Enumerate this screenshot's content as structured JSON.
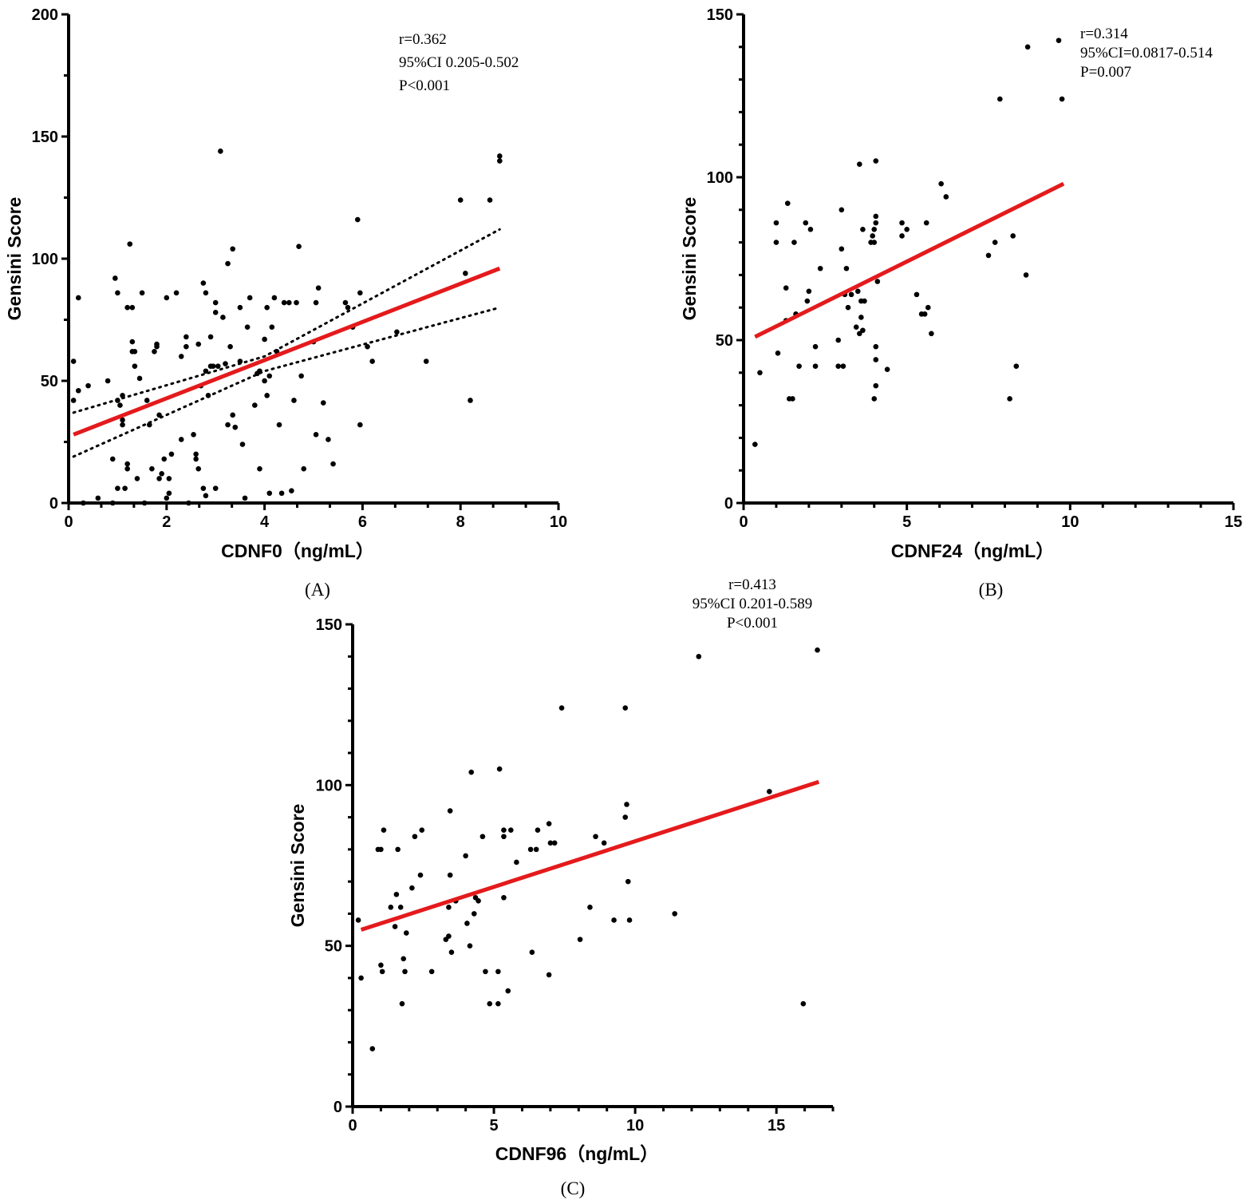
{
  "chart_data": [
    {
      "id": "A",
      "type": "scatter",
      "panel_label": "(A)",
      "xlabel": "CDNF0（ng/mL）",
      "ylabel": "Gensini Score",
      "xlim": [
        0,
        10
      ],
      "ylim": [
        0,
        200
      ],
      "xticks": [
        0,
        2,
        4,
        6,
        8,
        10
      ],
      "yticks": [
        0,
        50,
        100,
        150,
        200
      ],
      "x_minor": 2,
      "y_minor": 1,
      "stats": [
        "r=0.362",
        "95%CI 0.205-0.502",
        "P<0.001"
      ],
      "stats_align": "left",
      "fit_line": {
        "x": [
          0.1,
          8.8
        ],
        "y": [
          28,
          96
        ]
      },
      "ci_upper": {
        "x": [
          0.1,
          4.0,
          8.8
        ],
        "y": [
          37,
          60,
          112
        ]
      },
      "ci_lower": {
        "x": [
          0.1,
          4.0,
          8.8
        ],
        "y": [
          19,
          54,
          80
        ]
      },
      "points": [
        [
          0.1,
          58
        ],
        [
          0.1,
          42
        ],
        [
          0.2,
          84
        ],
        [
          0.2,
          46
        ],
        [
          0.3,
          0
        ],
        [
          0.4,
          48
        ],
        [
          0.6,
          2
        ],
        [
          0.8,
          50
        ],
        [
          0.9,
          0
        ],
        [
          0.9,
          18
        ],
        [
          0.95,
          92
        ],
        [
          1.0,
          86
        ],
        [
          1.0,
          6
        ],
        [
          1.0,
          42
        ],
        [
          1.05,
          40
        ],
        [
          1.1,
          32
        ],
        [
          1.1,
          34
        ],
        [
          1.1,
          44
        ],
        [
          1.15,
          6
        ],
        [
          1.2,
          14
        ],
        [
          1.2,
          16
        ],
        [
          1.2,
          80
        ],
        [
          1.25,
          106
        ],
        [
          1.3,
          80
        ],
        [
          1.3,
          62
        ],
        [
          1.3,
          66
        ],
        [
          1.35,
          56
        ],
        [
          1.35,
          62
        ],
        [
          1.4,
          10
        ],
        [
          1.45,
          51
        ],
        [
          1.5,
          86
        ],
        [
          1.55,
          0
        ],
        [
          1.6,
          42
        ],
        [
          1.65,
          32
        ],
        [
          1.7,
          14
        ],
        [
          1.75,
          62
        ],
        [
          1.8,
          64
        ],
        [
          1.8,
          65
        ],
        [
          1.85,
          10
        ],
        [
          1.85,
          36
        ],
        [
          1.9,
          12
        ],
        [
          1.95,
          18
        ],
        [
          2.0,
          84
        ],
        [
          2.0,
          2
        ],
        [
          2.05,
          10
        ],
        [
          2.05,
          4
        ],
        [
          2.1,
          20
        ],
        [
          2.2,
          86
        ],
        [
          2.3,
          60
        ],
        [
          2.3,
          26
        ],
        [
          2.4,
          64
        ],
        [
          2.4,
          68
        ],
        [
          2.45,
          0
        ],
        [
          2.55,
          28
        ],
        [
          2.6,
          20
        ],
        [
          2.6,
          18
        ],
        [
          2.65,
          65
        ],
        [
          2.65,
          14
        ],
        [
          2.7,
          48
        ],
        [
          2.75,
          90
        ],
        [
          2.75,
          6
        ],
        [
          2.8,
          86
        ],
        [
          2.8,
          54
        ],
        [
          2.8,
          3
        ],
        [
          2.85,
          44
        ],
        [
          2.9,
          56
        ],
        [
          2.9,
          68
        ],
        [
          2.95,
          56
        ],
        [
          3.0,
          82
        ],
        [
          3.0,
          78
        ],
        [
          3.0,
          6
        ],
        [
          3.05,
          56
        ],
        [
          3.1,
          144
        ],
        [
          3.15,
          76
        ],
        [
          3.2,
          57
        ],
        [
          3.25,
          98
        ],
        [
          3.25,
          32
        ],
        [
          3.3,
          64
        ],
        [
          3.35,
          104
        ],
        [
          3.35,
          36
        ],
        [
          3.4,
          31
        ],
        [
          3.5,
          80
        ],
        [
          3.5,
          58
        ],
        [
          3.55,
          24
        ],
        [
          3.6,
          2
        ],
        [
          3.65,
          72
        ],
        [
          3.7,
          84
        ],
        [
          3.8,
          40
        ],
        [
          3.85,
          53
        ],
        [
          3.9,
          14
        ],
        [
          3.9,
          54
        ],
        [
          4.0,
          67
        ],
        [
          4.0,
          50
        ],
        [
          4.05,
          80
        ],
        [
          4.05,
          44
        ],
        [
          4.1,
          52
        ],
        [
          4.1,
          4
        ],
        [
          4.15,
          72
        ],
        [
          4.2,
          84
        ],
        [
          4.25,
          62
        ],
        [
          4.3,
          32
        ],
        [
          4.35,
          4
        ],
        [
          4.4,
          82
        ],
        [
          4.5,
          82
        ],
        [
          4.55,
          5
        ],
        [
          4.6,
          42
        ],
        [
          4.65,
          82
        ],
        [
          4.7,
          105
        ],
        [
          4.75,
          52
        ],
        [
          4.8,
          14
        ],
        [
          5.0,
          66
        ],
        [
          5.05,
          28
        ],
        [
          5.05,
          82
        ],
        [
          5.1,
          88
        ],
        [
          5.2,
          41
        ],
        [
          5.3,
          26
        ],
        [
          5.4,
          16
        ],
        [
          5.65,
          82
        ],
        [
          5.7,
          80
        ],
        [
          5.8,
          72
        ],
        [
          5.9,
          116
        ],
        [
          5.95,
          86
        ],
        [
          5.95,
          32
        ],
        [
          6.1,
          64
        ],
        [
          6.2,
          58
        ],
        [
          6.7,
          70
        ],
        [
          7.3,
          58
        ],
        [
          8.0,
          124
        ],
        [
          8.1,
          94
        ],
        [
          8.2,
          42
        ],
        [
          8.6,
          124
        ],
        [
          8.8,
          140
        ],
        [
          8.8,
          142
        ]
      ]
    },
    {
      "id": "B",
      "type": "scatter",
      "panel_label": "(B)",
      "xlabel": "CDNF24（ng/mL）",
      "ylabel": "Gensini Score",
      "xlim": [
        0,
        15
      ],
      "ylim": [
        0,
        150
      ],
      "xticks": [
        0,
        5,
        10,
        15
      ],
      "yticks": [
        0,
        50,
        100,
        150
      ],
      "x_minor": 4,
      "y_minor": 4,
      "stats": [
        "r=0.314",
        "95%CI=0.0817-0.514",
        "P=0.007"
      ],
      "stats_align": "left",
      "fit_line": {
        "x": [
          0.35,
          9.8
        ],
        "y": [
          51,
          98
        ]
      },
      "points": [
        [
          0.35,
          18
        ],
        [
          0.5,
          40
        ],
        [
          1.0,
          80
        ],
        [
          1.0,
          86
        ],
        [
          1.05,
          46
        ],
        [
          1.3,
          66
        ],
        [
          1.3,
          56
        ],
        [
          1.35,
          92
        ],
        [
          1.4,
          32
        ],
        [
          1.5,
          32
        ],
        [
          1.55,
          80
        ],
        [
          1.6,
          58
        ],
        [
          1.7,
          42
        ],
        [
          1.9,
          86
        ],
        [
          1.95,
          62
        ],
        [
          2.0,
          65
        ],
        [
          2.05,
          84
        ],
        [
          2.2,
          48
        ],
        [
          2.2,
          42
        ],
        [
          2.35,
          72
        ],
        [
          2.9,
          42
        ],
        [
          2.9,
          50
        ],
        [
          3.0,
          90
        ],
        [
          3.0,
          78
        ],
        [
          3.05,
          42
        ],
        [
          3.1,
          64
        ],
        [
          3.15,
          72
        ],
        [
          3.2,
          60
        ],
        [
          3.3,
          64
        ],
        [
          3.45,
          54
        ],
        [
          3.5,
          65
        ],
        [
          3.55,
          104
        ],
        [
          3.55,
          52
        ],
        [
          3.6,
          57
        ],
        [
          3.6,
          62
        ],
        [
          3.65,
          84
        ],
        [
          3.65,
          53
        ],
        [
          3.7,
          62
        ],
        [
          3.9,
          80
        ],
        [
          3.95,
          82
        ],
        [
          4.0,
          84
        ],
        [
          4.0,
          80
        ],
        [
          4.0,
          32
        ],
        [
          4.05,
          86
        ],
        [
          4.05,
          36
        ],
        [
          4.05,
          105
        ],
        [
          4.05,
          88
        ],
        [
          4.05,
          48
        ],
        [
          4.05,
          44
        ],
        [
          4.1,
          68
        ],
        [
          4.4,
          41
        ],
        [
          4.85,
          86
        ],
        [
          4.85,
          82
        ],
        [
          5.0,
          84
        ],
        [
          5.3,
          64
        ],
        [
          5.45,
          58
        ],
        [
          5.55,
          58
        ],
        [
          5.6,
          86
        ],
        [
          5.65,
          60
        ],
        [
          5.75,
          52
        ],
        [
          6.05,
          98
        ],
        [
          6.2,
          94
        ],
        [
          7.5,
          76
        ],
        [
          7.7,
          80
        ],
        [
          7.85,
          124
        ],
        [
          8.15,
          32
        ],
        [
          8.25,
          82
        ],
        [
          8.35,
          42
        ],
        [
          8.65,
          70
        ],
        [
          8.7,
          140
        ],
        [
          9.65,
          142
        ],
        [
          9.75,
          124
        ]
      ]
    },
    {
      "id": "C",
      "type": "scatter",
      "panel_label": "(C)",
      "xlabel": "CDNF96（ng/mL）",
      "ylabel": "Gensini Score",
      "xlim": [
        0,
        17
      ],
      "ylim": [
        0,
        150
      ],
      "xticks": [
        0,
        5,
        10,
        15
      ],
      "yticks": [
        0,
        50,
        100,
        150
      ],
      "x_minor": 4,
      "y_minor": 4,
      "stats": [
        "r=0.413",
        "95%CI 0.201-0.589",
        "P<0.001"
      ],
      "stats_align": "center",
      "fit_line": {
        "x": [
          0.3,
          16.5
        ],
        "y": [
          55,
          101
        ]
      },
      "points": [
        [
          0.2,
          58
        ],
        [
          0.3,
          40
        ],
        [
          0.7,
          18
        ],
        [
          0.9,
          80
        ],
        [
          1.0,
          80
        ],
        [
          1.0,
          44
        ],
        [
          1.05,
          42
        ],
        [
          1.1,
          86
        ],
        [
          1.35,
          62
        ],
        [
          1.5,
          56
        ],
        [
          1.55,
          66
        ],
        [
          1.6,
          80
        ],
        [
          1.7,
          62
        ],
        [
          1.75,
          32
        ],
        [
          1.8,
          46
        ],
        [
          1.85,
          42
        ],
        [
          1.9,
          54
        ],
        [
          2.1,
          68
        ],
        [
          2.2,
          84
        ],
        [
          2.4,
          72
        ],
        [
          2.45,
          86
        ],
        [
          2.8,
          42
        ],
        [
          3.3,
          52
        ],
        [
          3.4,
          53
        ],
        [
          3.4,
          62
        ],
        [
          3.45,
          72
        ],
        [
          3.45,
          92
        ],
        [
          3.5,
          48
        ],
        [
          3.65,
          64
        ],
        [
          3.65,
          64
        ],
        [
          4.0,
          78
        ],
        [
          4.05,
          57
        ],
        [
          4.15,
          50
        ],
        [
          4.2,
          104
        ],
        [
          4.3,
          60
        ],
        [
          4.35,
          65
        ],
        [
          4.45,
          64
        ],
        [
          4.6,
          84
        ],
        [
          4.7,
          42
        ],
        [
          4.85,
          32
        ],
        [
          5.15,
          42
        ],
        [
          5.15,
          32
        ],
        [
          5.2,
          105
        ],
        [
          5.35,
          86
        ],
        [
          5.35,
          84
        ],
        [
          5.35,
          65
        ],
        [
          5.5,
          36
        ],
        [
          5.6,
          86
        ],
        [
          5.8,
          76
        ],
        [
          6.3,
          80
        ],
        [
          6.35,
          48
        ],
        [
          6.5,
          80
        ],
        [
          6.55,
          86
        ],
        [
          6.95,
          88
        ],
        [
          6.95,
          41
        ],
        [
          7.0,
          82
        ],
        [
          7.15,
          82
        ],
        [
          7.4,
          124
        ],
        [
          8.05,
          52
        ],
        [
          8.4,
          62
        ],
        [
          8.6,
          84
        ],
        [
          8.9,
          82
        ],
        [
          9.25,
          58
        ],
        [
          9.65,
          124
        ],
        [
          9.65,
          90
        ],
        [
          9.7,
          94
        ],
        [
          9.75,
          70
        ],
        [
          9.8,
          58
        ],
        [
          11.4,
          60
        ],
        [
          12.25,
          140
        ],
        [
          14.75,
          98
        ],
        [
          15.95,
          32
        ],
        [
          16.45,
          142
        ]
      ]
    }
  ]
}
